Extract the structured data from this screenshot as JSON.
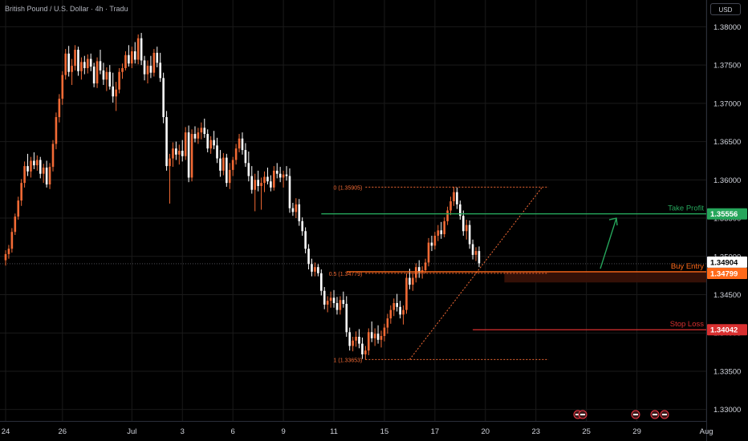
{
  "header": {
    "symbol_title": "British Pound / U.S. Dollar · 4h · Tradu",
    "currency_label": "USD"
  },
  "colors": {
    "up": "#f26a35",
    "down": "#ffffff",
    "take_profit": "#26a65b",
    "stop_loss": "#d93030",
    "entry": "#ff6a1a",
    "fib": "#f26a35",
    "grid": "#1a1a1a",
    "axis_text": "#d1d4dc"
  },
  "chart_data": {
    "type": "candlestick",
    "title": "British Pound / U.S. Dollar · 4h · Tradu",
    "y_axis": {
      "ylim": [
        1.3285,
        1.3835
      ],
      "ticks": [
        1.33,
        1.335,
        1.34,
        1.345,
        1.35,
        1.355,
        1.36,
        1.365,
        1.37,
        1.375,
        1.38
      ],
      "tick_labels": [
        "1.33000",
        "1.33500",
        "1.34000",
        "1.34500",
        "1.35000",
        "1.35500",
        "1.36000",
        "1.36500",
        "1.37000",
        "1.37500",
        "1.38000"
      ]
    },
    "x_axis": {
      "tick_labels": [
        "24",
        "26",
        "Jul",
        "3",
        "6",
        "9",
        "11",
        "15",
        "17",
        "20",
        "23",
        "25",
        "29",
        "Aug"
      ],
      "tick_bar_index": [
        0,
        18,
        40,
        56,
        72,
        88,
        104,
        120,
        136,
        152,
        168,
        184,
        200,
        222
      ]
    },
    "candles": [
      [
        1.3495,
        1.3508,
        1.3488,
        1.3503
      ],
      [
        1.3503,
        1.3515,
        1.3497,
        1.351
      ],
      [
        1.351,
        1.3537,
        1.3505,
        1.3532
      ],
      [
        1.3532,
        1.3556,
        1.3528,
        1.3552
      ],
      [
        1.3552,
        1.3578,
        1.3548,
        1.3573
      ],
      [
        1.3573,
        1.3601,
        1.3566,
        1.3596
      ],
      [
        1.3596,
        1.3624,
        1.359,
        1.3618
      ],
      [
        1.3618,
        1.3634,
        1.3605,
        1.3611
      ],
      [
        1.3611,
        1.363,
        1.3603,
        1.3625
      ],
      [
        1.3625,
        1.3636,
        1.3614,
        1.3619
      ],
      [
        1.3619,
        1.3632,
        1.3612,
        1.3626
      ],
      [
        1.3626,
        1.363,
        1.3602,
        1.3608
      ],
      [
        1.3608,
        1.3621,
        1.3596,
        1.3616
      ],
      [
        1.3616,
        1.3625,
        1.359,
        1.3594
      ],
      [
        1.3594,
        1.3622,
        1.3588,
        1.3617
      ],
      [
        1.3617,
        1.3652,
        1.3611,
        1.3647
      ],
      [
        1.3647,
        1.3688,
        1.364,
        1.3682
      ],
      [
        1.3682,
        1.3712,
        1.3675,
        1.3706
      ],
      [
        1.3706,
        1.3742,
        1.3698,
        1.3737
      ],
      [
        1.3737,
        1.3771,
        1.3731,
        1.3765
      ],
      [
        1.3765,
        1.3775,
        1.3735,
        1.3741
      ],
      [
        1.3741,
        1.3758,
        1.3724,
        1.3749
      ],
      [
        1.3749,
        1.3776,
        1.3743,
        1.377
      ],
      [
        1.377,
        1.3774,
        1.3736,
        1.3742
      ],
      [
        1.3742,
        1.376,
        1.3731,
        1.3754
      ],
      [
        1.3754,
        1.3762,
        1.3738,
        1.3746
      ],
      [
        1.3746,
        1.3764,
        1.3739,
        1.3758
      ],
      [
        1.3758,
        1.3765,
        1.3742,
        1.3748
      ],
      [
        1.3748,
        1.3753,
        1.3721,
        1.3726
      ],
      [
        1.3726,
        1.376,
        1.372,
        1.3755
      ],
      [
        1.3755,
        1.377,
        1.3738,
        1.3743
      ],
      [
        1.3743,
        1.3753,
        1.3724,
        1.3731
      ],
      [
        1.3731,
        1.3747,
        1.3716,
        1.3741
      ],
      [
        1.3741,
        1.375,
        1.3718,
        1.3722
      ],
      [
        1.3722,
        1.374,
        1.3701,
        1.3709
      ],
      [
        1.3709,
        1.3728,
        1.369,
        1.3718
      ],
      [
        1.3718,
        1.3746,
        1.3713,
        1.3741
      ],
      [
        1.3741,
        1.3752,
        1.3732,
        1.3746
      ],
      [
        1.3746,
        1.3768,
        1.3743,
        1.3763
      ],
      [
        1.3763,
        1.3776,
        1.3748,
        1.3752
      ],
      [
        1.3752,
        1.3774,
        1.3746,
        1.3768
      ],
      [
        1.3768,
        1.378,
        1.3752,
        1.3757
      ],
      [
        1.3757,
        1.379,
        1.3751,
        1.3785
      ],
      [
        1.3785,
        1.3792,
        1.375,
        1.3756
      ],
      [
        1.3756,
        1.3762,
        1.373,
        1.3738
      ],
      [
        1.3738,
        1.3756,
        1.3726,
        1.3749
      ],
      [
        1.3749,
        1.3762,
        1.3733,
        1.374
      ],
      [
        1.374,
        1.3771,
        1.3735,
        1.3766
      ],
      [
        1.3766,
        1.3774,
        1.3747,
        1.3753
      ],
      [
        1.3753,
        1.3766,
        1.3728,
        1.3733
      ],
      [
        1.3733,
        1.374,
        1.3674,
        1.3682
      ],
      [
        1.3682,
        1.369,
        1.3612,
        1.3618
      ],
      [
        1.3618,
        1.3634,
        1.3569,
        1.3628
      ],
      [
        1.3628,
        1.3649,
        1.3617,
        1.3641
      ],
      [
        1.3641,
        1.365,
        1.3626,
        1.3633
      ],
      [
        1.3633,
        1.3646,
        1.362,
        1.3638
      ],
      [
        1.3638,
        1.3652,
        1.3624,
        1.3631
      ],
      [
        1.3631,
        1.3669,
        1.3626,
        1.3662
      ],
      [
        1.3662,
        1.3671,
        1.3597,
        1.3603
      ],
      [
        1.3603,
        1.3666,
        1.3598,
        1.366
      ],
      [
        1.366,
        1.367,
        1.3649,
        1.3654
      ],
      [
        1.3654,
        1.3668,
        1.3647,
        1.3662
      ],
      [
        1.3662,
        1.3675,
        1.3653,
        1.3668
      ],
      [
        1.3668,
        1.368,
        1.3655,
        1.366
      ],
      [
        1.366,
        1.3666,
        1.3636,
        1.3641
      ],
      [
        1.3641,
        1.3657,
        1.3634,
        1.3652
      ],
      [
        1.3652,
        1.3664,
        1.364,
        1.3645
      ],
      [
        1.3645,
        1.3655,
        1.3622,
        1.3628
      ],
      [
        1.3628,
        1.3639,
        1.3604,
        1.3612
      ],
      [
        1.3612,
        1.3635,
        1.3606,
        1.3629
      ],
      [
        1.3629,
        1.3634,
        1.3591,
        1.3596
      ],
      [
        1.3596,
        1.3622,
        1.3588,
        1.3613
      ],
      [
        1.3613,
        1.363,
        1.3605,
        1.3626
      ],
      [
        1.3626,
        1.3647,
        1.362,
        1.3641
      ],
      [
        1.3641,
        1.366,
        1.3636,
        1.3654
      ],
      [
        1.3654,
        1.3662,
        1.3633,
        1.3639
      ],
      [
        1.3639,
        1.3648,
        1.3617,
        1.3622
      ],
      [
        1.3622,
        1.3637,
        1.3598,
        1.3605
      ],
      [
        1.3605,
        1.3618,
        1.3582,
        1.3587
      ],
      [
        1.3587,
        1.3608,
        1.3559,
        1.36
      ],
      [
        1.36,
        1.3612,
        1.3585,
        1.3592
      ],
      [
        1.3592,
        1.3603,
        1.3561,
        1.3596
      ],
      [
        1.3596,
        1.3611,
        1.3584,
        1.3604
      ],
      [
        1.3604,
        1.3616,
        1.3594,
        1.3598
      ],
      [
        1.3598,
        1.3606,
        1.3585,
        1.359
      ],
      [
        1.359,
        1.3618,
        1.3586,
        1.3612
      ],
      [
        1.3612,
        1.3622,
        1.3602,
        1.3608
      ],
      [
        1.3608,
        1.3617,
        1.3597,
        1.3603
      ],
      [
        1.3603,
        1.3612,
        1.359,
        1.3607
      ],
      [
        1.3607,
        1.3618,
        1.3599,
        1.3605
      ],
      [
        1.3605,
        1.3615,
        1.3557,
        1.3563
      ],
      [
        1.3563,
        1.357,
        1.3553,
        1.3558
      ],
      [
        1.3558,
        1.3576,
        1.355,
        1.3568
      ],
      [
        1.3568,
        1.3575,
        1.354,
        1.3546
      ],
      [
        1.3546,
        1.3551,
        1.3527,
        1.3533
      ],
      [
        1.3533,
        1.3538,
        1.3504,
        1.351
      ],
      [
        1.351,
        1.3516,
        1.3483,
        1.349
      ],
      [
        1.349,
        1.3497,
        1.3474,
        1.348
      ],
      [
        1.348,
        1.3492,
        1.3474,
        1.3486
      ],
      [
        1.3486,
        1.349,
        1.3474,
        1.3478
      ],
      [
        1.3478,
        1.3483,
        1.3449,
        1.3455
      ],
      [
        1.3455,
        1.346,
        1.3431,
        1.3437
      ],
      [
        1.3437,
        1.3448,
        1.3427,
        1.3442
      ],
      [
        1.3442,
        1.3454,
        1.3433,
        1.3446
      ],
      [
        1.3446,
        1.3456,
        1.3433,
        1.3439
      ],
      [
        1.3439,
        1.3447,
        1.3424,
        1.343
      ],
      [
        1.343,
        1.3448,
        1.3424,
        1.3443
      ],
      [
        1.3443,
        1.3454,
        1.3433,
        1.3438
      ],
      [
        1.3438,
        1.3448,
        1.3395,
        1.3401
      ],
      [
        1.3401,
        1.3407,
        1.3377,
        1.3383
      ],
      [
        1.3383,
        1.3395,
        1.3376,
        1.339
      ],
      [
        1.339,
        1.3402,
        1.3382,
        1.3395
      ],
      [
        1.3395,
        1.3405,
        1.338,
        1.3386
      ],
      [
        1.3386,
        1.3394,
        1.3366,
        1.3372
      ],
      [
        1.3372,
        1.3383,
        1.3365,
        1.3377
      ],
      [
        1.3377,
        1.3406,
        1.3371,
        1.3401
      ],
      [
        1.3401,
        1.3415,
        1.3388,
        1.3393
      ],
      [
        1.3393,
        1.3406,
        1.3383,
        1.3399
      ],
      [
        1.3399,
        1.341,
        1.3386,
        1.3391
      ],
      [
        1.3391,
        1.3403,
        1.3381,
        1.3396
      ],
      [
        1.3396,
        1.3412,
        1.3389,
        1.3407
      ],
      [
        1.3407,
        1.3425,
        1.3399,
        1.3419
      ],
      [
        1.3419,
        1.3436,
        1.3412,
        1.343
      ],
      [
        1.343,
        1.3445,
        1.3422,
        1.3439
      ],
      [
        1.3439,
        1.3451,
        1.3428,
        1.3434
      ],
      [
        1.3434,
        1.3442,
        1.3419,
        1.3424
      ],
      [
        1.3424,
        1.3436,
        1.3411,
        1.343
      ],
      [
        1.343,
        1.3478,
        1.3425,
        1.3472
      ],
      [
        1.3472,
        1.3484,
        1.3457,
        1.3463
      ],
      [
        1.3463,
        1.3479,
        1.3455,
        1.3472
      ],
      [
        1.3472,
        1.3491,
        1.3466,
        1.3486
      ],
      [
        1.3486,
        1.3495,
        1.3472,
        1.3479
      ],
      [
        1.3479,
        1.3487,
        1.3471,
        1.3482
      ],
      [
        1.3482,
        1.3497,
        1.3478,
        1.3492
      ],
      [
        1.3492,
        1.3524,
        1.3487,
        1.3518
      ],
      [
        1.3518,
        1.3527,
        1.3507,
        1.3514
      ],
      [
        1.3514,
        1.3532,
        1.3509,
        1.3527
      ],
      [
        1.3527,
        1.3541,
        1.352,
        1.3534
      ],
      [
        1.3534,
        1.3545,
        1.3523,
        1.3529
      ],
      [
        1.3529,
        1.3551,
        1.3525,
        1.3546
      ],
      [
        1.3546,
        1.3565,
        1.3541,
        1.356
      ],
      [
        1.356,
        1.3578,
        1.3554,
        1.3572
      ],
      [
        1.3572,
        1.3591,
        1.3566,
        1.3584
      ],
      [
        1.3584,
        1.359,
        1.3562,
        1.3568
      ],
      [
        1.3568,
        1.3573,
        1.3548,
        1.3553
      ],
      [
        1.3553,
        1.356,
        1.3527,
        1.3533
      ],
      [
        1.3533,
        1.3548,
        1.3522,
        1.3541
      ],
      [
        1.3541,
        1.3547,
        1.351,
        1.3516
      ],
      [
        1.3516,
        1.3522,
        1.3496,
        1.3502
      ],
      [
        1.3502,
        1.3512,
        1.3494,
        1.3507
      ],
      [
        1.3507,
        1.3513,
        1.3486,
        1.3491
      ]
    ],
    "price_lines": [
      {
        "label": "Take Profit",
        "value": 1.35556,
        "value_label": "1.35556"
      },
      {
        "label": "Buy Entry",
        "value": 1.34799,
        "value_label": "1.34799"
      },
      {
        "label": "Stop Loss",
        "value": 1.34042,
        "value_label": "1.34042"
      },
      {
        "label": "",
        "value": 1.34904,
        "value_label": "1.34904"
      }
    ],
    "fibonacci": {
      "levels": [
        {
          "label": "0 (1.35905)",
          "value": 1.35905
        },
        {
          "label": "0.5 (1.34779)",
          "value": 1.34779
        },
        {
          "label": "1 (1.33653)",
          "value": 1.33653
        }
      ]
    }
  }
}
